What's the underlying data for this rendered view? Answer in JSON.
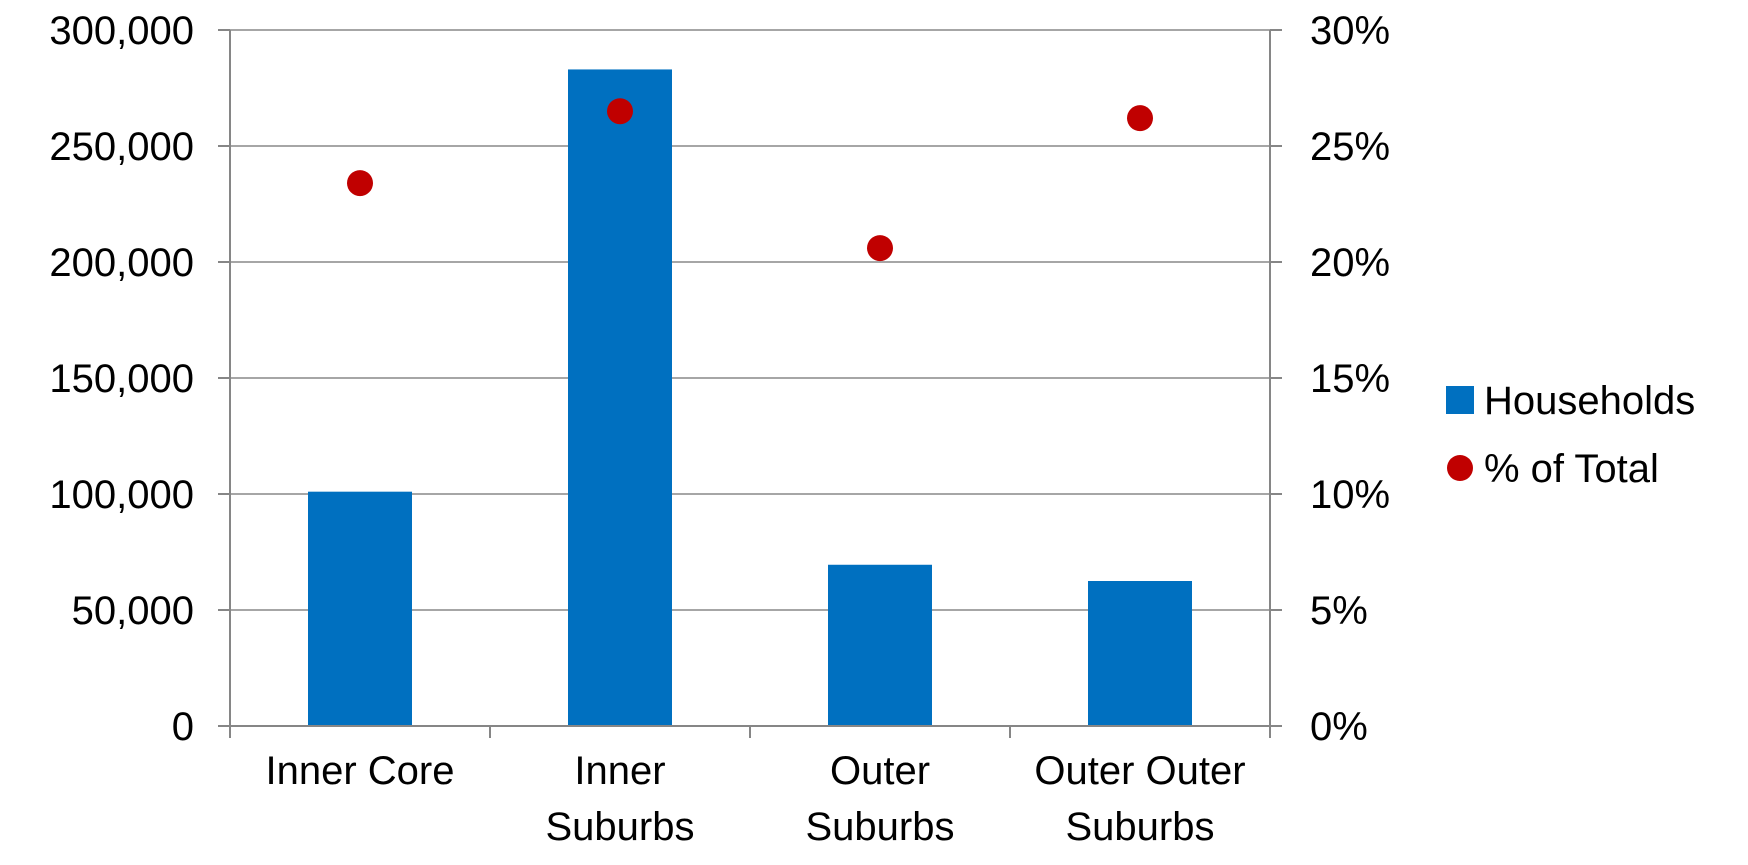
{
  "chart_data": {
    "type": "bar",
    "categories": [
      [
        "Inner Core"
      ],
      [
        "Inner",
        "Suburbs"
      ],
      [
        "Outer",
        "Suburbs"
      ],
      [
        "Outer Outer",
        "Suburbs"
      ]
    ],
    "series": [
      {
        "name": "Households",
        "type": "bar",
        "axis": "left",
        "color": "#0070C0",
        "values": [
          101000,
          283000,
          69500,
          62500
        ]
      },
      {
        "name": "% of Total",
        "type": "scatter",
        "axis": "right",
        "color": "#C00000",
        "values": [
          0.234,
          0.265,
          0.206,
          0.262
        ]
      }
    ],
    "y_left": {
      "range": [
        0,
        300000
      ],
      "ticks": [
        0,
        50000,
        100000,
        150000,
        200000,
        250000,
        300000
      ],
      "tick_labels": [
        "0",
        "50,000",
        "100,000",
        "150,000",
        "200,000",
        "250,000",
        "300,000"
      ]
    },
    "y_right": {
      "range": [
        0,
        0.3
      ],
      "ticks": [
        0,
        0.05,
        0.1,
        0.15,
        0.2,
        0.25,
        0.3
      ],
      "tick_labels": [
        "0%",
        "5%",
        "10%",
        "15%",
        "20%",
        "25%",
        "30%"
      ]
    },
    "title": "",
    "xlabel": "",
    "ylabel": "",
    "grid": true,
    "grid_color": "#A6A6A6",
    "legend_position": "right"
  }
}
